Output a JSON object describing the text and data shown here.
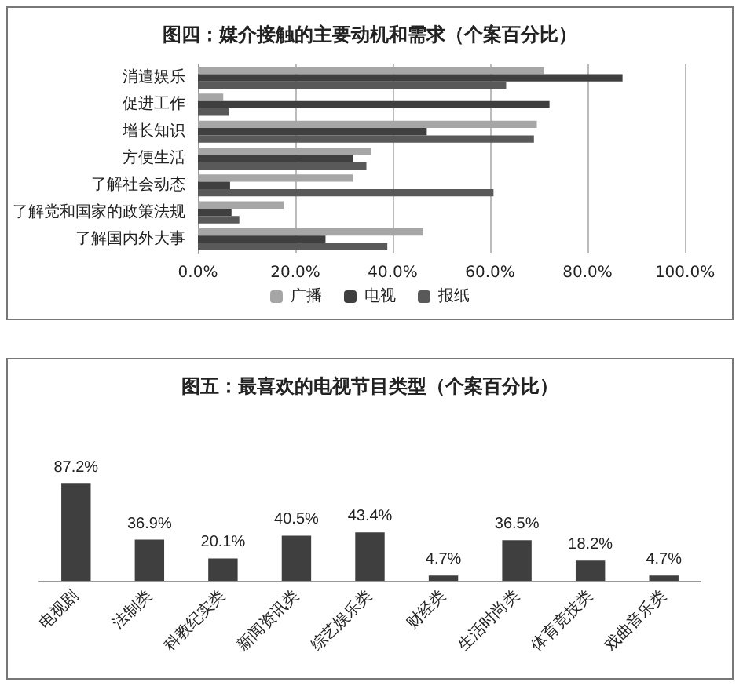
{
  "chart_data": [
    {
      "type": "bar",
      "title": "图四：媒介接触的主要动机和需求（个案百分比）",
      "orientation": "horizontal",
      "categories": [
        "消遣娱乐",
        "促进工作",
        "增长知识",
        "方便生活",
        "了解社会动态",
        "了解党和国家的政策法规",
        "了解国内外大事"
      ],
      "series": [
        {
          "name": "广播",
          "color": "#a6a6a6",
          "values": [
            71.1,
            5.2,
            69.6,
            35.5,
            31.8,
            17.6,
            46.2
          ]
        },
        {
          "name": "电视",
          "color": "#3f3f3f",
          "values": [
            87.2,
            72.2,
            47.0,
            31.8,
            6.6,
            6.9,
            26.2
          ]
        },
        {
          "name": "报纸",
          "color": "#595959",
          "values": [
            63.3,
            6.3,
            69.0,
            34.6,
            60.7,
            8.5,
            38.9
          ]
        }
      ],
      "xlim": [
        0,
        100
      ],
      "xticks": [
        {
          "value": 0,
          "label": "0.0%"
        },
        {
          "value": 20,
          "label": "20.0%"
        },
        {
          "value": 40,
          "label": "40.0%"
        },
        {
          "value": 60,
          "label": "60.0%"
        },
        {
          "value": 80,
          "label": "80.0%"
        },
        {
          "value": 100,
          "label": "100.0%"
        }
      ],
      "grid": "x",
      "legend": "bottom"
    },
    {
      "type": "bar",
      "title": "图五：最喜欢的电视节目类型（个案百分比）",
      "categories": [
        "电视剧",
        "法制类",
        "科教纪实类",
        "新闻资讯类",
        "综艺娱乐类",
        "财经类",
        "生活时尚类",
        "体育竞技类",
        "戏曲音乐类"
      ],
      "values": [
        87.2,
        36.9,
        20.1,
        40.5,
        43.4,
        4.7,
        36.5,
        18.2,
        4.7
      ],
      "value_labels": [
        "87.2%",
        "36.9%",
        "20.1%",
        "40.5%",
        "43.4%",
        "4.7%",
        "36.5%",
        "18.2%",
        "4.7%"
      ],
      "color": "#3f3f3f",
      "grid": false,
      "legend": false
    }
  ]
}
